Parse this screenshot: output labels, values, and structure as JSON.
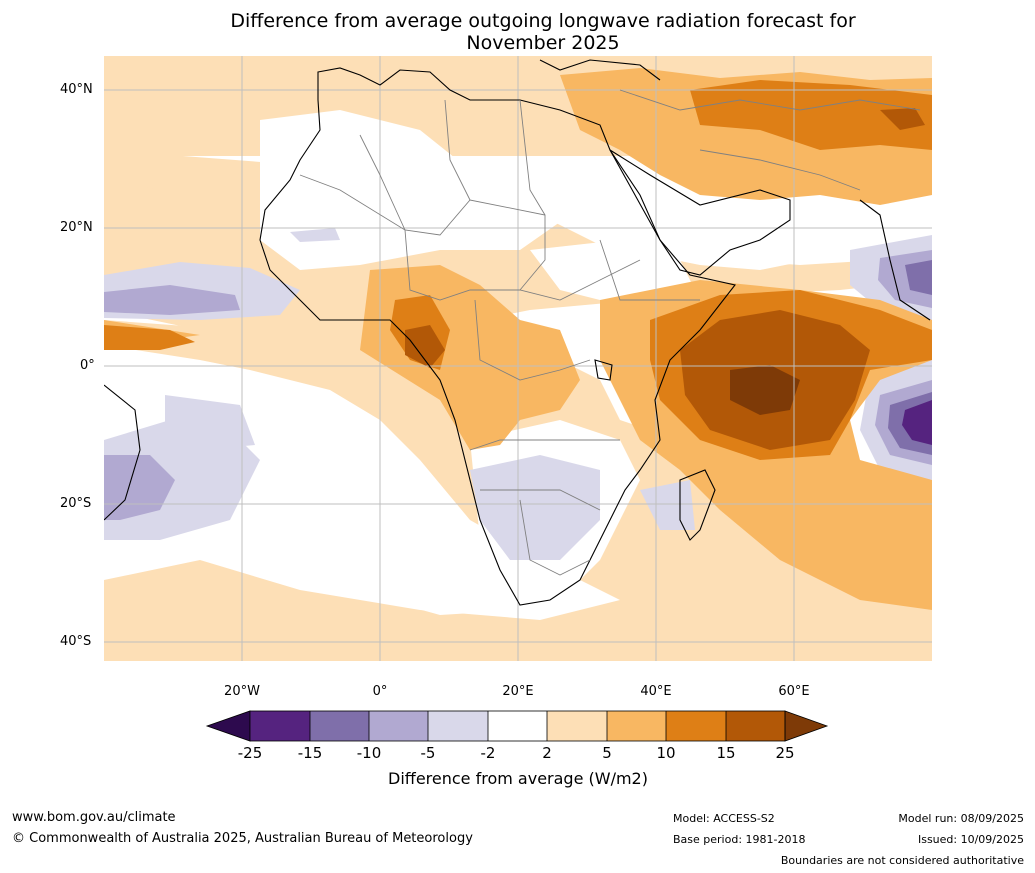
{
  "title": "Difference from average outgoing longwave radiation forecast for November 2025",
  "title_lines": [
    "Difference from average outgoing longwave radiation forecast for",
    "November 2025"
  ],
  "map": {
    "latitude_labels": [
      "40°N",
      "20°N",
      "0°",
      "20°S",
      "40°S"
    ],
    "longitude_labels": [
      "20°W",
      "0°",
      "20°E",
      "40°E",
      "60°E"
    ],
    "land_outline_color": "#000000",
    "border_color": "#808080",
    "gridline_color": "#bfbfbf"
  },
  "colorbar": {
    "title": "Difference from average (W/m2)",
    "tick_labels": [
      "-25",
      "-15",
      "-10",
      "-5",
      "-2",
      "2",
      "5",
      "10",
      "15",
      "25"
    ],
    "colors": [
      "#2d0a4e",
      "#55237f",
      "#7f6faa",
      "#b1a9d1",
      "#d9d8ea",
      "#ffffff",
      "#fddfb6",
      "#f8b762",
      "#de7f16",
      "#b25807",
      "#7e3a07"
    ]
  },
  "footer": {
    "website": "www.bom.gov.au/climate",
    "copyright": "© Commonwealth of Australia 2025, Australian Bureau of Meteorology",
    "model": "Model: ACCESS-S2",
    "base_period": "Base period: 1981-2018",
    "model_run": "Model run: 08/09/2025",
    "issued": "Issued: 10/09/2025",
    "disclaimer": "Boundaries are not considered authoritative"
  }
}
